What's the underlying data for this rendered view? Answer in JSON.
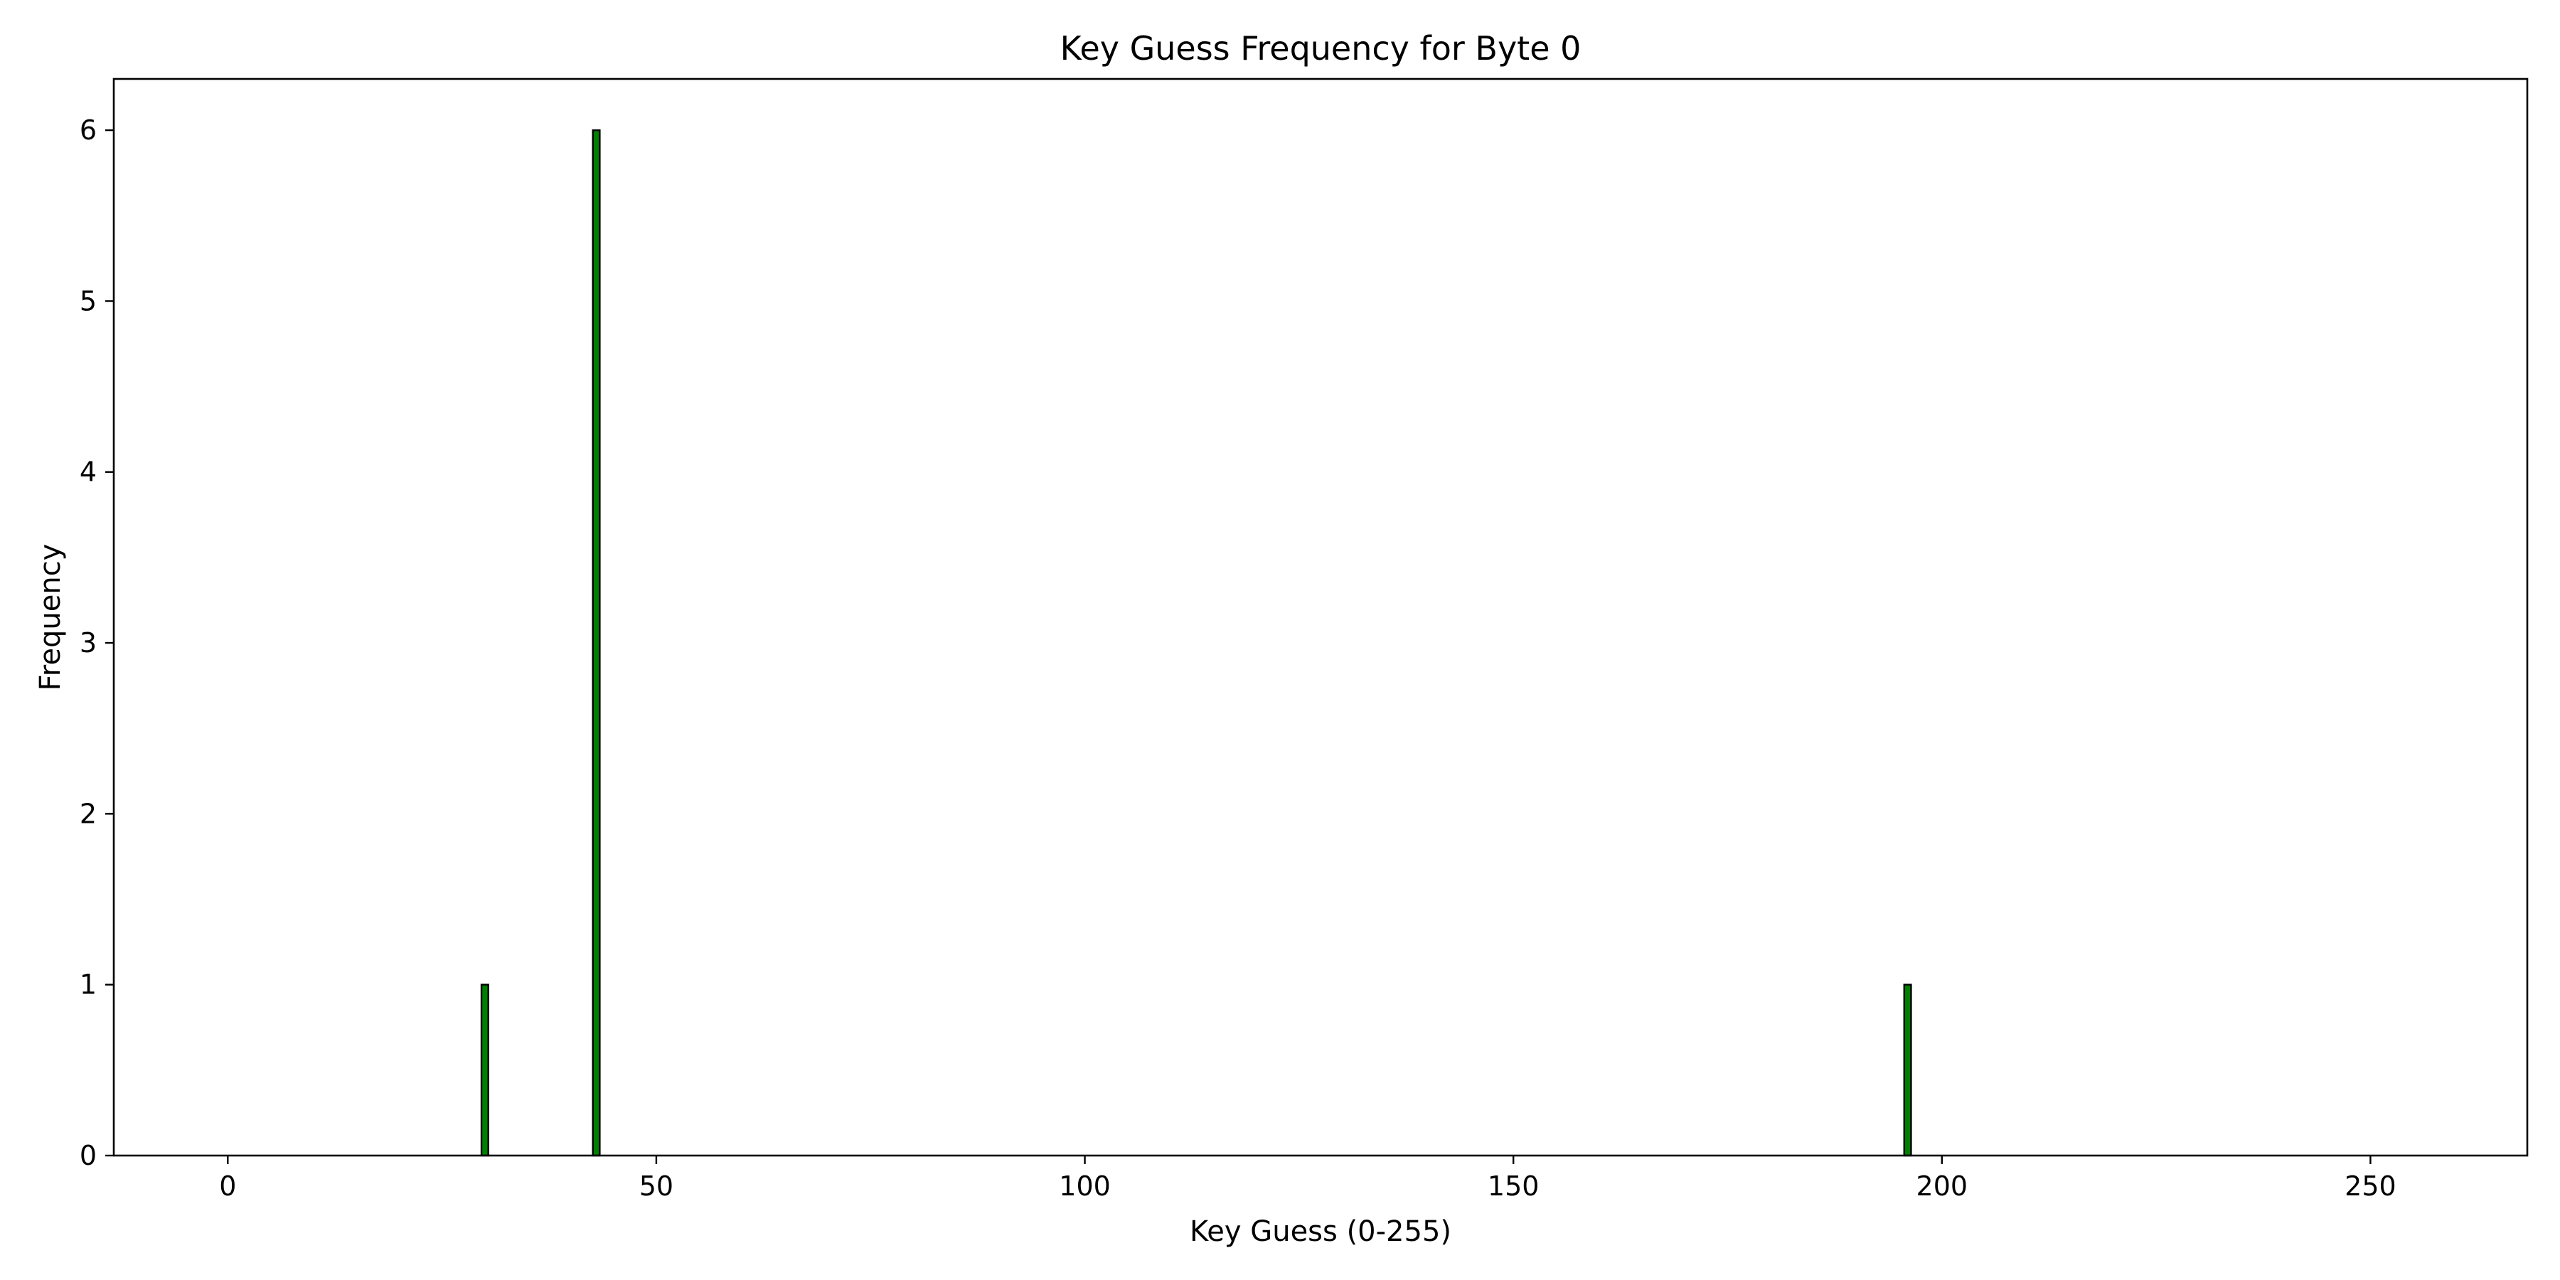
{
  "chart_data": {
    "type": "bar",
    "title": "Key Guess Frequency for Byte 0",
    "xlabel": "Key Guess (0-255)",
    "ylabel": "Frequency",
    "x_range": [
      0,
      255
    ],
    "xlim": [
      -13.3,
      268.3
    ],
    "ylim": [
      0,
      6.3
    ],
    "x_ticks": [
      0,
      50,
      100,
      150,
      200,
      250
    ],
    "y_ticks": [
      0,
      1,
      2,
      3,
      4,
      5,
      6
    ],
    "nonzero_values": [
      {
        "x": 30,
        "y": 1
      },
      {
        "x": 43,
        "y": 6
      },
      {
        "x": 196,
        "y": 1
      }
    ],
    "bar_color": "#008000",
    "edge_color": "#000000",
    "grid": false,
    "legend": "none"
  }
}
